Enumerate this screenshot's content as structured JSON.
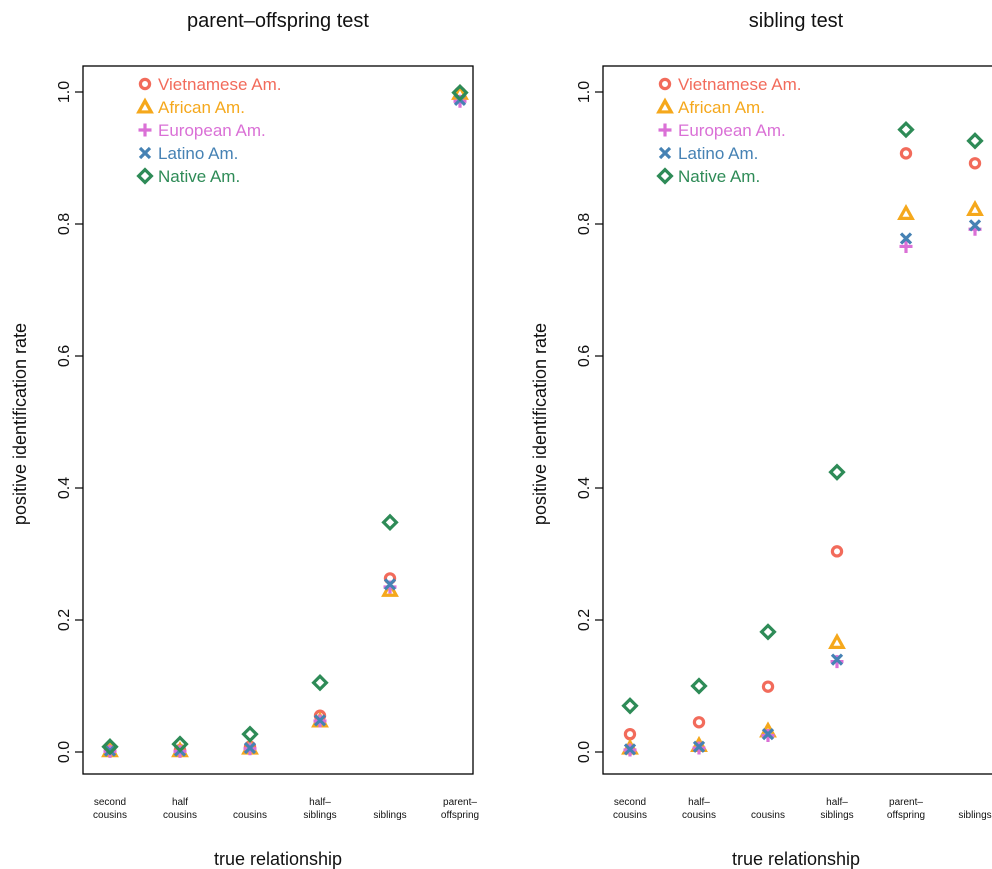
{
  "chart_data": [
    {
      "type": "scatter",
      "title": "parent–offspring test",
      "xlabel": "true relationship",
      "ylabel": "positive identification rate",
      "ylim": [
        0,
        1.0
      ],
      "yticks": [
        "0.0",
        "0.2",
        "0.4",
        "0.6",
        "0.8",
        "1.0"
      ],
      "categories": [
        [
          "second",
          "cousins"
        ],
        [
          "half",
          "cousins"
        ],
        [
          "cousins"
        ],
        [
          "half–",
          "siblings"
        ],
        [
          "siblings"
        ],
        [
          "parent–",
          "offspring"
        ]
      ],
      "legend_position": "top-left",
      "series": [
        {
          "name": "Vietnamese Am.",
          "marker": "circle",
          "color": "#F26B5B",
          "values": [
            0.003,
            0.003,
            0.008,
            0.055,
            0.263,
            0.999
          ]
        },
        {
          "name": "African Am.",
          "marker": "triangle",
          "color": "#F5A81C",
          "values": [
            0.002,
            0.002,
            0.006,
            0.047,
            0.245,
            0.998
          ]
        },
        {
          "name": "European Am.",
          "marker": "plus",
          "color": "#DA70D6",
          "values": [
            0.001,
            0.001,
            0.005,
            0.047,
            0.25,
            0.986
          ]
        },
        {
          "name": "Latino Am.",
          "marker": "x",
          "color": "#4682B4",
          "values": [
            0.002,
            0.002,
            0.006,
            0.048,
            0.254,
            0.988
          ]
        },
        {
          "name": "Native Am.",
          "marker": "diamond",
          "color": "#2E8B57",
          "values": [
            0.008,
            0.012,
            0.027,
            0.105,
            0.348,
            0.999
          ]
        }
      ]
    },
    {
      "type": "scatter",
      "title": "sibling test",
      "xlabel": "true relationship",
      "ylabel": "positive identification rate",
      "ylim": [
        0,
        1.0
      ],
      "yticks": [
        "0.0",
        "0.2",
        "0.4",
        "0.6",
        "0.8",
        "1.0"
      ],
      "categories": [
        [
          "second",
          "cousins"
        ],
        [
          "half–",
          "cousins"
        ],
        [
          "cousins"
        ],
        [
          "half–",
          "siblings"
        ],
        [
          "parent–",
          "offspring"
        ],
        [
          "siblings"
        ]
      ],
      "legend_position": "top-left",
      "series": [
        {
          "name": "Vietnamese Am.",
          "marker": "circle",
          "color": "#F26B5B",
          "values": [
            0.027,
            0.045,
            0.099,
            0.304,
            0.907,
            0.892
          ]
        },
        {
          "name": "African Am.",
          "marker": "triangle",
          "color": "#F5A81C",
          "values": [
            0.006,
            0.01,
            0.032,
            0.166,
            0.816,
            0.822
          ]
        },
        {
          "name": "European Am.",
          "marker": "plus",
          "color": "#DA70D6",
          "values": [
            0.003,
            0.006,
            0.025,
            0.137,
            0.766,
            0.792
          ]
        },
        {
          "name": "Latino Am.",
          "marker": "x",
          "color": "#4682B4",
          "values": [
            0.004,
            0.008,
            0.027,
            0.14,
            0.778,
            0.798
          ]
        },
        {
          "name": "Native Am.",
          "marker": "diamond",
          "color": "#2E8B57",
          "values": [
            0.07,
            0.1,
            0.182,
            0.424,
            0.943,
            0.926
          ]
        }
      ]
    }
  ]
}
